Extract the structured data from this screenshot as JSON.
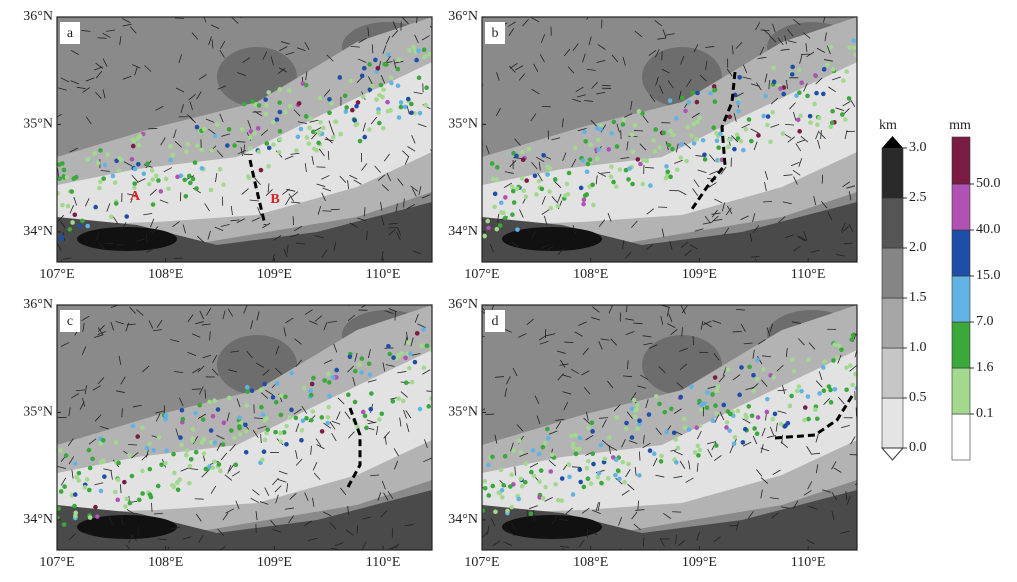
{
  "panels": [
    {
      "label": "a"
    },
    {
      "label": "b"
    },
    {
      "label": "c"
    },
    {
      "label": "d"
    }
  ],
  "xlim": [
    107,
    110.45
  ],
  "ylim": [
    33.72,
    36
  ],
  "xticks": [
    {
      "value": 107,
      "label": "107°E"
    },
    {
      "value": 108,
      "label": "108°E"
    },
    {
      "value": 109,
      "label": "109°E"
    },
    {
      "value": 110,
      "label": "110°E"
    }
  ],
  "yticks": [
    {
      "value": 34,
      "label": "34°N"
    },
    {
      "value": 35,
      "label": "35°N"
    },
    {
      "value": 36,
      "label": "36°N"
    }
  ],
  "annotations": [
    "A",
    "B"
  ],
  "terrain_colorbar": {
    "unit": "km",
    "ticks": [
      {
        "value": 0,
        "label": "0.0"
      },
      {
        "value": 0.5,
        "label": "0.5"
      },
      {
        "value": 1,
        "label": "1.0"
      },
      {
        "value": 1.5,
        "label": "1.5"
      },
      {
        "value": 2,
        "label": "2.0"
      },
      {
        "value": 2.5,
        "label": "2.5"
      },
      {
        "value": 3,
        "label": "3.0"
      }
    ],
    "colors": [
      "#e4e4e4",
      "#c6c6c6",
      "#a6a6a6",
      "#858585",
      "#555555",
      "#2a2a2a"
    ]
  },
  "rain_colorbar": {
    "unit": "mm",
    "ticks": [
      {
        "value": 0.1,
        "label": "0.1"
      },
      {
        "value": 1.6,
        "label": "1.6"
      },
      {
        "value": 7,
        "label": "7.0"
      },
      {
        "value": 15,
        "label": "15.0"
      },
      {
        "value": 40,
        "label": "40.0"
      },
      {
        "value": 50,
        "label": "50.0"
      }
    ],
    "colors": [
      "#ffffff",
      "#a3d98f",
      "#3aa83a",
      "#62b3e3",
      "#1f4ea6",
      "#b052b4",
      "#7a1b44"
    ]
  }
}
